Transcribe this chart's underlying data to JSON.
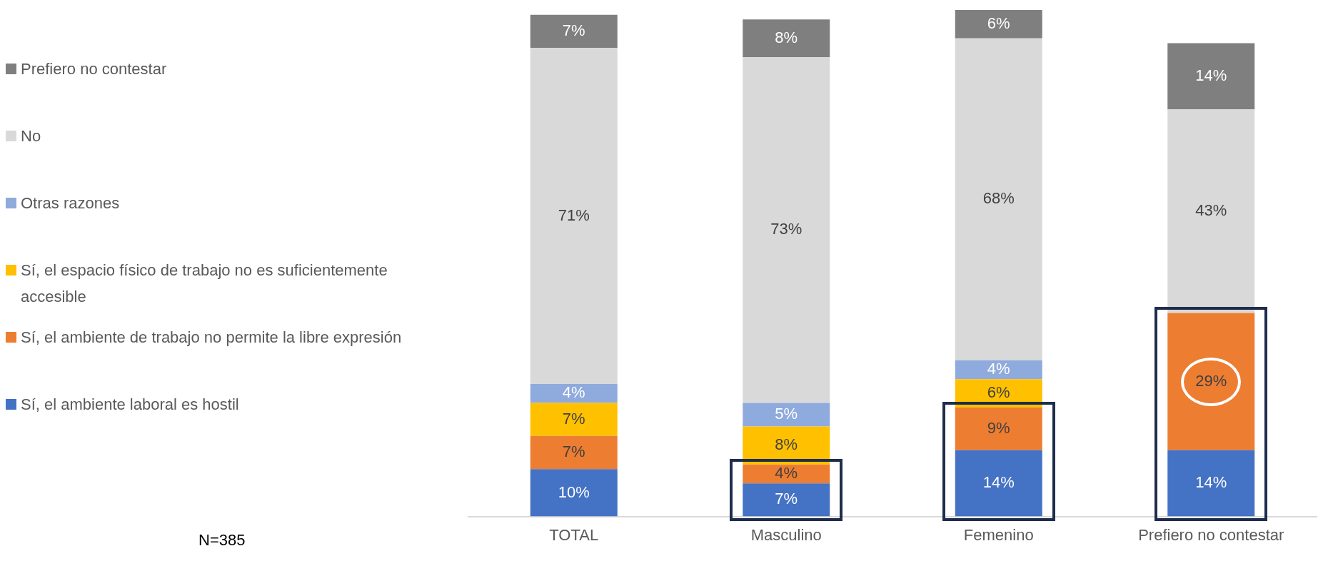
{
  "chart_data": {
    "type": "bar",
    "stacked": true,
    "legend": "left",
    "tick_labels": "x",
    "categories": [
      "TOTAL",
      "Masculino",
      "Femenino",
      "Prefiero no contestar"
    ],
    "series": [
      {
        "name": "Sí, el ambiente laboral es hostil",
        "color": "#4472c4",
        "values": [
          10,
          7,
          14,
          14
        ],
        "value_labels": [
          "10%",
          "7%",
          "14%",
          "14%"
        ]
      },
      {
        "name": "Sí, el ambiente de trabajo no permite la libre expresión",
        "color": "#ed7d31",
        "values": [
          7,
          4,
          9,
          29
        ],
        "value_labels": [
          "7%",
          "4%",
          "9%",
          "29%"
        ]
      },
      {
        "name": "Sí, el espacio físico de trabajo no es suficientemente accesible",
        "color": "#ffc000",
        "values": [
          7,
          8,
          6,
          null
        ],
        "value_labels": [
          "7%",
          "8%",
          "6%",
          null
        ]
      },
      {
        "name": "Otras razones",
        "color": "#8faadc",
        "values": [
          4,
          5,
          4,
          null
        ],
        "value_labels": [
          "4%",
          "5%",
          "4%",
          null
        ]
      },
      {
        "name": "No",
        "color": "#d9d9d9",
        "values": [
          71,
          73,
          68,
          43
        ],
        "value_labels": [
          "71%",
          "73%",
          "68%",
          "43%"
        ]
      },
      {
        "name": "Prefiero no contestar",
        "color": "#7f7f7f",
        "values": [
          7,
          8,
          6,
          14
        ],
        "value_labels": [
          "7%",
          "8%",
          "6%",
          "14%"
        ]
      }
    ],
    "annotations": [
      "N=385"
    ]
  }
}
